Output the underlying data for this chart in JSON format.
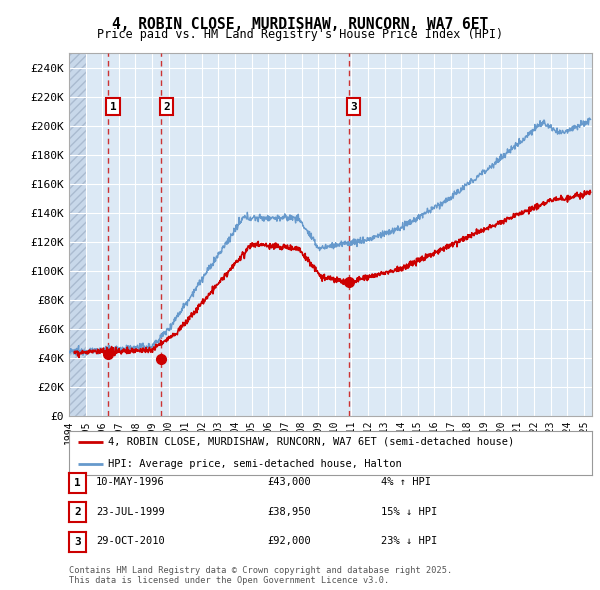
{
  "title": "4, ROBIN CLOSE, MURDISHAW, RUNCORN, WA7 6ET",
  "subtitle": "Price paid vs. HM Land Registry's House Price Index (HPI)",
  "ylim": [
    0,
    250000
  ],
  "yticks": [
    0,
    20000,
    40000,
    60000,
    80000,
    100000,
    120000,
    140000,
    160000,
    180000,
    200000,
    220000,
    240000
  ],
  "ytick_labels": [
    "£0",
    "£20K",
    "£40K",
    "£60K",
    "£80K",
    "£100K",
    "£120K",
    "£140K",
    "£160K",
    "£180K",
    "£200K",
    "£220K",
    "£240K"
  ],
  "xlim_start": 1994.0,
  "xlim_end": 2025.5,
  "sale_dates": [
    1996.36,
    1999.56,
    2010.83
  ],
  "sale_prices": [
    43000,
    38950,
    92000
  ],
  "sale_labels": [
    "1",
    "2",
    "3"
  ],
  "legend_line1": "4, ROBIN CLOSE, MURDISHAW, RUNCORN, WA7 6ET (semi-detached house)",
  "legend_line2": "HPI: Average price, semi-detached house, Halton",
  "table_rows": [
    [
      "1",
      "10-MAY-1996",
      "£43,000",
      "4% ↑ HPI"
    ],
    [
      "2",
      "23-JUL-1999",
      "£38,950",
      "15% ↓ HPI"
    ],
    [
      "3",
      "29-OCT-2010",
      "£92,000",
      "23% ↓ HPI"
    ]
  ],
  "footer": "Contains HM Land Registry data © Crown copyright and database right 2025.\nThis data is licensed under the Open Government Licence v3.0.",
  "bg_color": "#dce9f5",
  "grid_color": "#ffffff",
  "red_line_color": "#cc0000",
  "blue_line_color": "#6699cc"
}
